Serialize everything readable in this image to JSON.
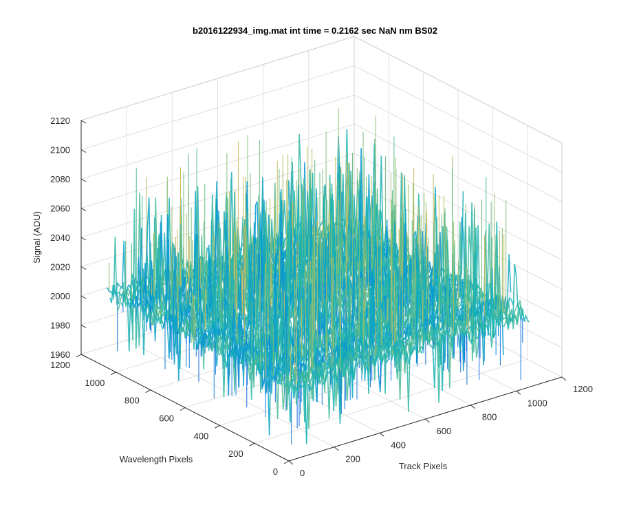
{
  "chart_data": {
    "type": "surface",
    "title": "b2016122934_img.mat int time = 0.2162 sec  NaN nm BS02",
    "xlabel": "Track Pixels",
    "ylabel": "Wavelength Pixels",
    "zlabel": "Signal (ADU)",
    "xlim": [
      0,
      1200
    ],
    "ylim": [
      0,
      1200
    ],
    "zlim": [
      1960,
      2120
    ],
    "x_ticks": [
      0,
      200,
      400,
      600,
      800,
      1000,
      1200
    ],
    "y_ticks": [
      0,
      200,
      400,
      600,
      800,
      1000,
      1200
    ],
    "z_ticks": [
      1960,
      1980,
      2000,
      2020,
      2040,
      2060,
      2080,
      2100,
      2120
    ],
    "data_extent": {
      "x": [
        1,
        1056
      ],
      "y": [
        1,
        1056
      ]
    },
    "signal_mean": 2010,
    "signal_range": [
      1965,
      2105
    ],
    "grid": true,
    "colormap": "parula"
  }
}
